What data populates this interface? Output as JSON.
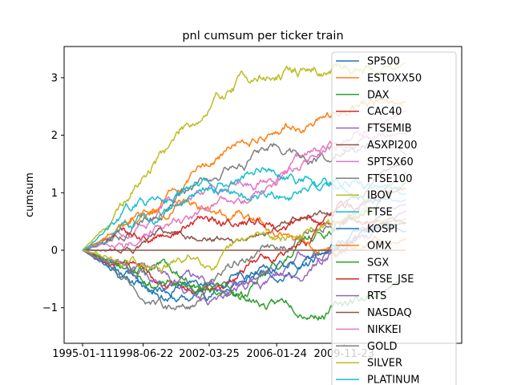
{
  "chart_data": {
    "type": "line",
    "title": "pnl cumsum per ticker train",
    "xlabel": "",
    "ylabel": "cumsum",
    "x_range": [
      "1995-01-11",
      "2013-06-01"
    ],
    "ylim": [
      -1.6,
      3.55
    ],
    "x_ticks": [
      "1995-01-11",
      "1998-06-22",
      "2002-03-25",
      "2006-01-24",
      "2009-11-23"
    ],
    "y_ticks": [
      -1,
      0,
      1,
      2,
      3
    ],
    "grid": false,
    "legend_position": "upper-right",
    "legend_overflow_note": "legend and series list continue past visible area",
    "series": [
      {
        "name": "SP500",
        "color": "#1f77b4",
        "final": 0.3,
        "extremes": [
          [
            2001.0,
            -0.7
          ]
        ],
        "vol": 0.05,
        "seed": 11
      },
      {
        "name": "ESTOXX50",
        "color": "#ff7f0e",
        "final": 2.6,
        "extremes": [
          [
            2006.0,
            2.2
          ]
        ],
        "vol": 0.05,
        "seed": 12
      },
      {
        "name": "DAX",
        "color": "#2ca02c",
        "final": 1.2,
        "extremes": [
          [
            2003.5,
            -0.8
          ]
        ],
        "vol": 0.05,
        "seed": 13
      },
      {
        "name": "CAC40",
        "color": "#d62728",
        "final": 1.0,
        "extremes": [
          [
            2003.0,
            -0.5
          ]
        ],
        "vol": 0.05,
        "seed": 14
      },
      {
        "name": "FTSEMIB",
        "color": "#9467bd",
        "final": 0.8,
        "extremes": [
          [
            2003.0,
            -0.95
          ]
        ],
        "vol": 0.05,
        "seed": 15
      },
      {
        "name": "ASXPI200",
        "color": "#8c564b",
        "final": 1.5,
        "extremes": [
          [
            2004.0,
            0.3
          ]
        ],
        "vol": 0.04,
        "seed": 16
      },
      {
        "name": "SPTSX60",
        "color": "#e377c2",
        "final": 2.0,
        "extremes": [
          [
            2000.0,
            1.0
          ]
        ],
        "vol": 0.05,
        "seed": 17
      },
      {
        "name": "FTSE100",
        "color": "#7f7f7f",
        "final": 1.6,
        "extremes": [
          [
            2006.0,
            1.9
          ]
        ],
        "vol": 0.05,
        "seed": 18
      },
      {
        "name": "IBOV",
        "color": "#bcbd22",
        "final": 3.3,
        "extremes": [
          [
            2001.0,
            2.2
          ],
          [
            2004.2,
            3.0
          ]
        ],
        "vol": 0.06,
        "seed": 19
      },
      {
        "name": "FTSE",
        "color": "#17becf",
        "final": 0.9,
        "extremes": [
          [
            2000.5,
            1.0
          ]
        ],
        "vol": 0.05,
        "seed": 20
      },
      {
        "name": "KOSPI",
        "color": "#1f77b4",
        "final": 0.5,
        "extremes": [
          [
            1999.0,
            -0.6
          ]
        ],
        "vol": 0.05,
        "seed": 21
      },
      {
        "name": "OMX",
        "color": "#ff7f0e",
        "final": 0.2,
        "extremes": [
          [
            2001.0,
            0.8
          ]
        ],
        "vol": 0.05,
        "seed": 22
      },
      {
        "name": "SGX",
        "color": "#2ca02c",
        "final": -0.5,
        "extremes": [
          [
            2006.0,
            -1.0
          ]
        ],
        "vol": 0.05,
        "seed": 23
      },
      {
        "name": "FTSE_JSE",
        "color": "#d62728",
        "final": 0.4,
        "extremes": [
          [
            2002.0,
            0.6
          ]
        ],
        "vol": 0.05,
        "seed": 24
      },
      {
        "name": "RTS",
        "color": "#9467bd",
        "final": 0.7,
        "extremes": [
          [
            2003.0,
            -0.9
          ]
        ],
        "vol": 0.05,
        "seed": 25
      },
      {
        "name": "NASDAQ",
        "color": "#8c564b",
        "final": 0.0,
        "extremes": [],
        "vol": 0.0,
        "seed": 26
      },
      {
        "name": "NIKKEI",
        "color": "#e377c2",
        "final": 2.4,
        "extremes": [
          [
            2005.0,
            1.2
          ]
        ],
        "vol": 0.05,
        "seed": 27
      },
      {
        "name": "GOLD",
        "color": "#7f7f7f",
        "final": 1.4,
        "extremes": [
          [
            2000.0,
            -1.0
          ]
        ],
        "vol": 0.05,
        "seed": 28
      },
      {
        "name": "SILVER",
        "color": "#bcbd22",
        "final": 0.6,
        "extremes": [
          [
            1999.0,
            -0.4
          ]
        ],
        "vol": 0.05,
        "seed": 29
      },
      {
        "name": "PLATINUM",
        "color": "#17becf",
        "final": 1.0,
        "extremes": [
          [
            2006.0,
            1.5
          ]
        ],
        "vol": 0.05,
        "seed": 30
      }
    ]
  }
}
